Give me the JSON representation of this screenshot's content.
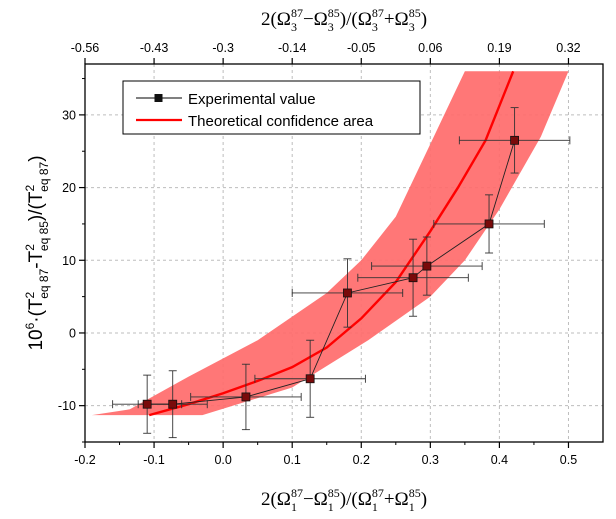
{
  "chart_data": {
    "type": "scatter",
    "colors": {
      "band": "#ff6b6b",
      "theory": "#ff0000",
      "points": "#111111",
      "grid": "#bdbdbd"
    },
    "x_axis": {
      "range": [
        -0.2,
        0.55
      ],
      "ticks": [
        -0.2,
        -0.1,
        0,
        0.1,
        0.2,
        0.3,
        0.4,
        0.5
      ],
      "tick_labels": [
        "-0.2",
        "-0.1",
        "0.0",
        "0.1",
        "0.2",
        "0.3",
        "0.4",
        "0.5"
      ]
    },
    "top_axis": {
      "tick_labels": [
        "-0.56",
        "-0.43",
        "-0.3",
        "-0.14",
        "-0.05",
        "0.06",
        "0.19",
        "0.32"
      ]
    },
    "y_axis": {
      "range": [
        -15,
        37
      ],
      "ticks": [
        -10,
        0,
        10,
        20,
        30
      ],
      "tick_labels": [
        "-10",
        "0",
        "10",
        "20",
        "30"
      ]
    },
    "grid": true,
    "legend": {
      "placement": "top-left",
      "entries": [
        {
          "label": "Experimental value"
        },
        {
          "label": "Theoretical confidence area"
        }
      ]
    },
    "series": [
      {
        "name": "Experimental value",
        "type": "scatter",
        "points": [
          {
            "x": -0.11,
            "y": -9.8,
            "xerr": 0.05,
            "yerr": 4.0
          },
          {
            "x": -0.073,
            "y": -9.8,
            "xerr": 0.05,
            "yerr": 4.6
          },
          {
            "x": 0.033,
            "y": -8.8,
            "xerr": 0.08,
            "yerr": 4.5
          },
          {
            "x": 0.126,
            "y": -6.3,
            "xerr": 0.08,
            "yerr": 5.3
          },
          {
            "x": 0.18,
            "y": 5.5,
            "xerr": 0.08,
            "yerr": 4.7
          },
          {
            "x": 0.275,
            "y": 7.6,
            "xerr": 0.08,
            "yerr": 5.3
          },
          {
            "x": 0.295,
            "y": 9.2,
            "xerr": 0.08,
            "yerr": 4.0
          },
          {
            "x": 0.385,
            "y": 15.0,
            "xerr": 0.08,
            "yerr": 4.0
          },
          {
            "x": 0.422,
            "y": 26.5,
            "xerr": 0.08,
            "yerr": 4.5
          }
        ]
      },
      {
        "name": "Theoretical confidence area",
        "type": "line",
        "x": [
          -0.107,
          -0.05,
          0.0,
          0.05,
          0.1,
          0.15,
          0.2,
          0.25,
          0.27,
          0.3,
          0.34,
          0.38,
          0.42
        ],
        "y": [
          -11.3,
          -9.8,
          -8.3,
          -6.6,
          -4.7,
          -2.0,
          2.0,
          7.0,
          9.8,
          14.0,
          20.0,
          26.5,
          36.0
        ],
        "band_upper": {
          "x": [
            -0.135,
            -0.05,
            0.05,
            0.15,
            0.2,
            0.25,
            0.3,
            0.35,
            0.37,
            0.4
          ],
          "y": [
            -10.5,
            -6.0,
            -1.0,
            5.5,
            10.0,
            16.0,
            26.0,
            36.0,
            36.0,
            36.0
          ]
        },
        "band_lower": {
          "x": [
            -0.19,
            -0.03,
            0.1,
            0.21,
            0.3,
            0.35,
            0.4,
            0.46,
            0.5
          ],
          "y": [
            -11.3,
            -11.3,
            -7.5,
            -1.0,
            5.0,
            10.0,
            17.0,
            27.0,
            36.0
          ]
        }
      }
    ]
  }
}
